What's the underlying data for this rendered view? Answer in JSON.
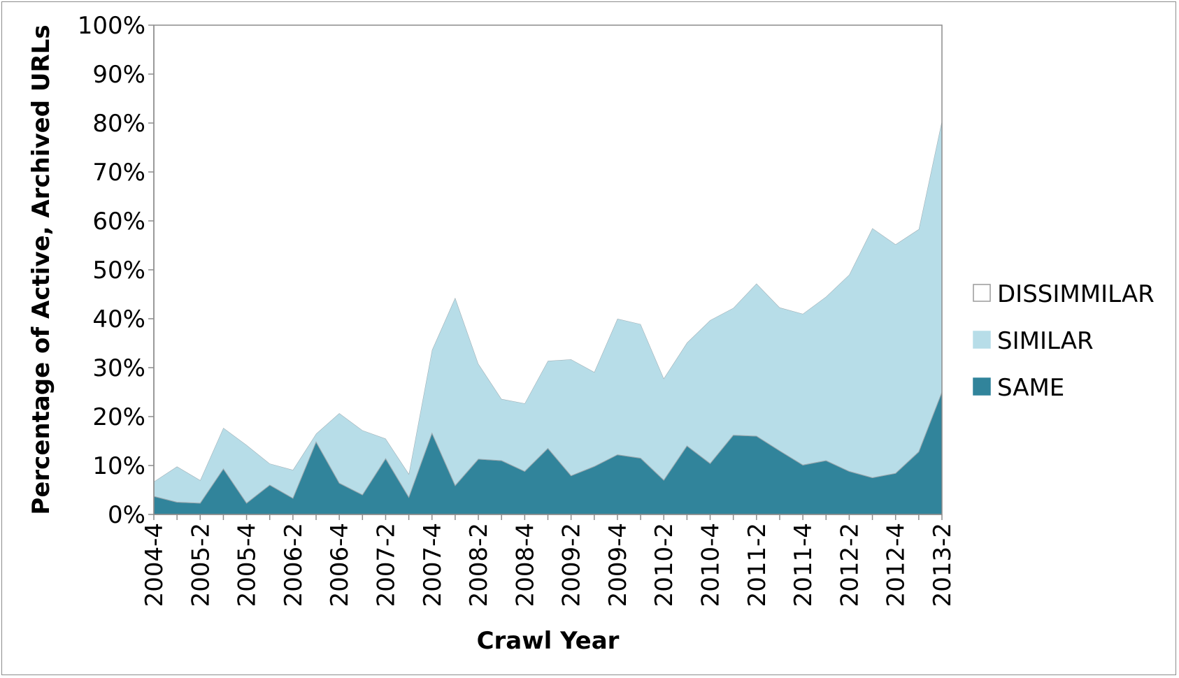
{
  "chart_data": {
    "type": "area",
    "stacked": true,
    "xlabel": "Crawl Year",
    "ylabel": "Percentage of Active, Archived URLs",
    "ylim": [
      0,
      100
    ],
    "yticks": [
      "0%",
      "10%",
      "20%",
      "30%",
      "40%",
      "50%",
      "60%",
      "70%",
      "80%",
      "90%",
      "100%"
    ],
    "categories": [
      "2004-4",
      "2005-1",
      "2005-2",
      "2005-3",
      "2005-4",
      "2006-1",
      "2006-2",
      "2006-3",
      "2006-4",
      "2007-1",
      "2007-2",
      "2007-3",
      "2007-4",
      "2008-1",
      "2008-2",
      "2008-3",
      "2008-4",
      "2009-1",
      "2009-2",
      "2009-3",
      "2009-4",
      "2010-1",
      "2010-2",
      "2010-3",
      "2010-4",
      "2011-1",
      "2011-2",
      "2011-3",
      "2011-4",
      "2012-1",
      "2012-2",
      "2012-3",
      "2012-4",
      "2013-1",
      "2013-2"
    ],
    "labeled_categories": [
      "2004-4",
      "2005-2",
      "2005-4",
      "2006-2",
      "2006-4",
      "2007-2",
      "2007-4",
      "2008-2",
      "2008-4",
      "2009-2",
      "2009-4",
      "2010-2",
      "2010-4",
      "2011-2",
      "2011-4",
      "2012-2",
      "2012-4",
      "2013-2"
    ],
    "grid": false,
    "legend_position": "right",
    "series": [
      {
        "name": "SAME",
        "color": "#31849b",
        "values": [
          3.7,
          2.5,
          2.3,
          9.3,
          2.3,
          6.0,
          3.3,
          14.8,
          6.4,
          4.0,
          11.4,
          3.5,
          16.6,
          5.9,
          11.3,
          11.0,
          8.8,
          13.5,
          7.9,
          9.8,
          12.2,
          11.5,
          7.0,
          14.0,
          10.4,
          16.2,
          16.0,
          13.0,
          10.1,
          11.0,
          8.8,
          7.5,
          8.4,
          12.8,
          25.0
        ]
      },
      {
        "name": "SIMILAR",
        "color": "#b7dde8",
        "values": [
          3.0,
          7.3,
          4.7,
          8.4,
          11.9,
          4.4,
          5.8,
          1.7,
          14.3,
          13.2,
          4.1,
          4.8,
          17.0,
          38.4,
          19.5,
          12.6,
          13.9,
          17.9,
          23.8,
          19.3,
          27.8,
          27.4,
          20.8,
          21.1,
          29.3,
          26.0,
          31.2,
          29.3,
          30.9,
          33.5,
          40.2,
          51.0,
          46.8,
          45.5,
          55.5
        ]
      },
      {
        "name": "DISSIMMILAR",
        "color": "#ffffff",
        "values": [
          93.3,
          90.2,
          93.0,
          82.3,
          85.8,
          89.6,
          90.9,
          83.5,
          79.3,
          82.8,
          84.5,
          91.7,
          66.4,
          55.7,
          69.2,
          76.4,
          77.3,
          68.6,
          68.3,
          70.9,
          60.0,
          61.1,
          72.2,
          64.9,
          60.3,
          57.8,
          52.8,
          57.7,
          59.0,
          55.5,
          51.0,
          41.5,
          44.8,
          41.7,
          19.5
        ]
      }
    ]
  }
}
